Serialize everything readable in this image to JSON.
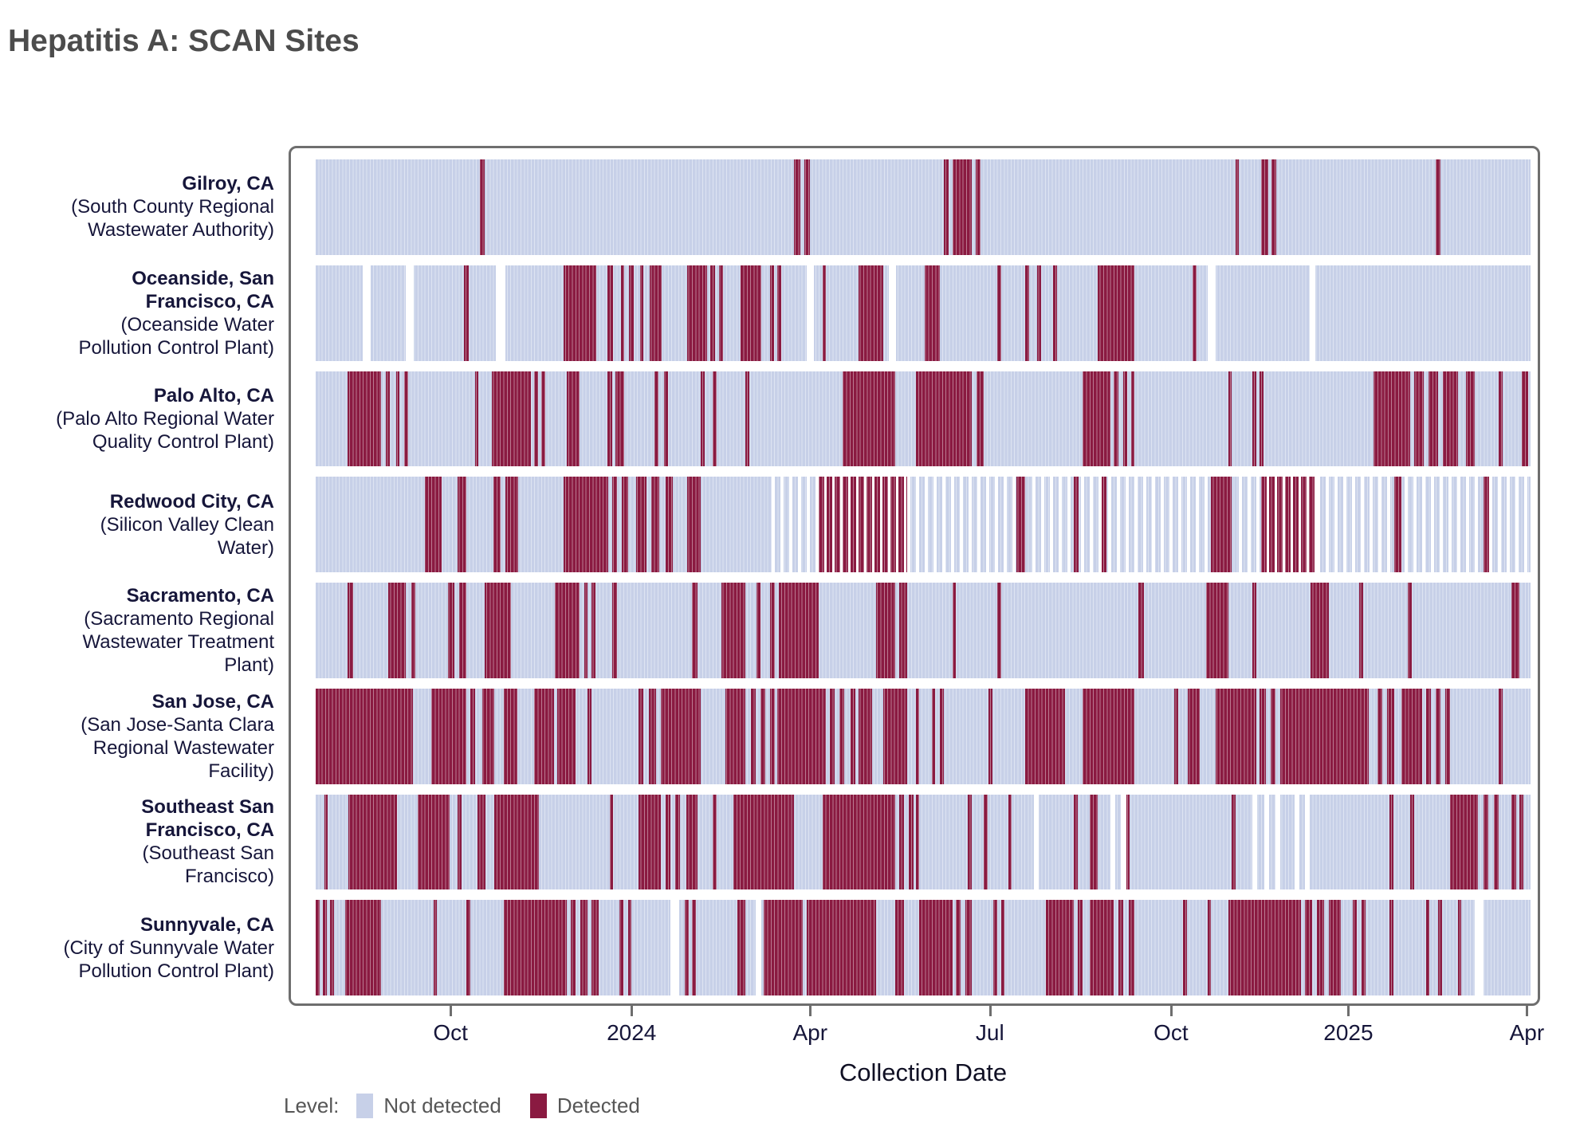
{
  "title": "Hepatitis A: SCAN Sites",
  "chart_data": {
    "type": "heatmap",
    "subtype": "detection-strip-timeline",
    "title": "Hepatitis A: SCAN Sites",
    "xlabel": "Collection Date",
    "x_range": [
      "Jul 2023",
      "Apr 2025"
    ],
    "grid": false,
    "x_ticks": [
      {
        "label": "Oct",
        "pos": 0.111
      },
      {
        "label": "2024",
        "pos": 0.26
      },
      {
        "label": "Apr",
        "pos": 0.407
      },
      {
        "label": "Jul",
        "pos": 0.555
      },
      {
        "label": "Oct",
        "pos": 0.704
      },
      {
        "label": "2025",
        "pos": 0.85
      },
      {
        "label": "Apr",
        "pos": 0.997
      }
    ],
    "legend": {
      "title": "Level:",
      "position": "bottom-left",
      "items": [
        {
          "label": "Not detected",
          "color": "#c7d0e8"
        },
        {
          "label": "Detected",
          "color": "#8a1a41"
        }
      ]
    },
    "colors": {
      "not_detected": "#c7d0e8",
      "detected": "#8a1a41",
      "no_data": "#ffffff",
      "panel_border": "#6e6e6e"
    },
    "sites": [
      {
        "city": "Gilroy, CA",
        "facility": "(South County Regional Wastewater Authority)",
        "detected": [
          [
            0.135,
            0.139
          ],
          [
            0.394,
            0.399
          ],
          [
            0.402,
            0.407
          ],
          [
            0.517,
            0.521
          ],
          [
            0.524,
            0.54
          ],
          [
            0.543,
            0.547
          ],
          [
            0.757,
            0.76
          ],
          [
            0.778,
            0.784
          ],
          [
            0.787,
            0.791
          ],
          [
            0.922,
            0.926
          ]
        ],
        "gaps": [],
        "sparse": [],
        "sparse_detected": []
      },
      {
        "city": "Oceanside, San Francisco, CA",
        "facility": "(Oceanside Water Pollution Control Plant)",
        "detected": [
          [
            0.122,
            0.126
          ],
          [
            0.204,
            0.231
          ],
          [
            0.24,
            0.245
          ],
          [
            0.251,
            0.254
          ],
          [
            0.258,
            0.262
          ],
          [
            0.267,
            0.27
          ],
          [
            0.275,
            0.285
          ],
          [
            0.306,
            0.322
          ],
          [
            0.325,
            0.329
          ],
          [
            0.332,
            0.335
          ],
          [
            0.35,
            0.367
          ],
          [
            0.374,
            0.377
          ],
          [
            0.38,
            0.383
          ],
          [
            0.417,
            0.42
          ],
          [
            0.447,
            0.467
          ],
          [
            0.501,
            0.514
          ],
          [
            0.561,
            0.564
          ],
          [
            0.584,
            0.587
          ],
          [
            0.594,
            0.597
          ],
          [
            0.607,
            0.61
          ],
          [
            0.644,
            0.674
          ],
          [
            0.722,
            0.725
          ]
        ],
        "gaps": [
          [
            0.039,
            0.045
          ],
          [
            0.074,
            0.081
          ],
          [
            0.148,
            0.156
          ],
          [
            0.404,
            0.41
          ],
          [
            0.472,
            0.478
          ],
          [
            0.734,
            0.741
          ],
          [
            0.818,
            0.823
          ]
        ],
        "sparse": [],
        "sparse_detected": []
      },
      {
        "city": "Palo Alto, CA",
        "facility": "(Palo Alto Regional Water Quality Control Plant)",
        "detected": [
          [
            0.026,
            0.054
          ],
          [
            0.058,
            0.061
          ],
          [
            0.066,
            0.069
          ],
          [
            0.073,
            0.076
          ],
          [
            0.131,
            0.134
          ],
          [
            0.145,
            0.177
          ],
          [
            0.18,
            0.183
          ],
          [
            0.186,
            0.189
          ],
          [
            0.207,
            0.217
          ],
          [
            0.24,
            0.244
          ],
          [
            0.247,
            0.254
          ],
          [
            0.279,
            0.282
          ],
          [
            0.287,
            0.29
          ],
          [
            0.317,
            0.32
          ],
          [
            0.327,
            0.33
          ],
          [
            0.354,
            0.357
          ],
          [
            0.434,
            0.477
          ],
          [
            0.494,
            0.54
          ],
          [
            0.544,
            0.55
          ],
          [
            0.631,
            0.654
          ],
          [
            0.657,
            0.661
          ],
          [
            0.665,
            0.668
          ],
          [
            0.671,
            0.674
          ],
          [
            0.751,
            0.754
          ],
          [
            0.771,
            0.774
          ],
          [
            0.777,
            0.78
          ],
          [
            0.871,
            0.901
          ],
          [
            0.904,
            0.912
          ],
          [
            0.916,
            0.924
          ],
          [
            0.928,
            0.94
          ],
          [
            0.947,
            0.954
          ],
          [
            0.974,
            0.977
          ],
          [
            0.993,
            0.998
          ]
        ],
        "gaps": [],
        "sparse": [],
        "sparse_detected": []
      },
      {
        "city": "Redwood City, CA",
        "facility": "(Silicon Valley Clean Water)",
        "detected": [
          [
            0.09,
            0.104
          ],
          [
            0.117,
            0.124
          ],
          [
            0.146,
            0.152
          ],
          [
            0.156,
            0.167
          ],
          [
            0.204,
            0.241
          ],
          [
            0.244,
            0.248
          ],
          [
            0.252,
            0.257
          ],
          [
            0.264,
            0.272
          ],
          [
            0.276,
            0.283
          ],
          [
            0.288,
            0.294
          ],
          [
            0.306,
            0.317
          ],
          [
            0.577,
            0.584
          ],
          [
            0.624,
            0.628
          ],
          [
            0.647,
            0.651
          ],
          [
            0.737,
            0.754
          ],
          [
            0.888,
            0.894
          ],
          [
            0.961,
            0.966
          ]
        ],
        "gaps": [],
        "sparse": [
          [
            0.375,
            0.414
          ],
          [
            0.487,
            0.577
          ],
          [
            0.59,
            0.624
          ],
          [
            0.63,
            0.647
          ],
          [
            0.652,
            0.737
          ],
          [
            0.76,
            0.778
          ],
          [
            0.824,
            0.888
          ],
          [
            0.896,
            0.961
          ],
          [
            0.966,
            1.0
          ]
        ],
        "sparse_detected": [
          [
            0.414,
            0.487
          ],
          [
            0.778,
            0.824
          ]
        ]
      },
      {
        "city": "Sacramento, CA",
        "facility": "(Sacramento Regional Wastewater Treatment Plant)",
        "detected": [
          [
            0.026,
            0.031
          ],
          [
            0.06,
            0.074
          ],
          [
            0.079,
            0.082
          ],
          [
            0.109,
            0.114
          ],
          [
            0.118,
            0.124
          ],
          [
            0.139,
            0.161
          ],
          [
            0.197,
            0.217
          ],
          [
            0.221,
            0.224
          ],
          [
            0.227,
            0.23
          ],
          [
            0.244,
            0.248
          ],
          [
            0.31,
            0.314
          ],
          [
            0.334,
            0.354
          ],
          [
            0.363,
            0.366
          ],
          [
            0.374,
            0.378
          ],
          [
            0.381,
            0.414
          ],
          [
            0.461,
            0.477
          ],
          [
            0.48,
            0.487
          ],
          [
            0.524,
            0.527
          ],
          [
            0.561,
            0.564
          ],
          [
            0.677,
            0.682
          ],
          [
            0.733,
            0.751
          ],
          [
            0.771,
            0.774
          ],
          [
            0.819,
            0.834
          ],
          [
            0.859,
            0.862
          ],
          [
            0.899,
            0.902
          ],
          [
            0.984,
            0.991
          ]
        ],
        "gaps": [],
        "sparse": [],
        "sparse_detected": []
      },
      {
        "city": "San Jose, CA",
        "facility": "(San Jose-Santa Clara Regional Wastewater Facility)",
        "detected": [
          [
            0.0,
            0.08
          ],
          [
            0.095,
            0.124
          ],
          [
            0.127,
            0.131
          ],
          [
            0.137,
            0.147
          ],
          [
            0.155,
            0.166
          ],
          [
            0.18,
            0.196
          ],
          [
            0.199,
            0.214
          ],
          [
            0.224,
            0.227
          ],
          [
            0.266,
            0.27
          ],
          [
            0.274,
            0.28
          ],
          [
            0.284,
            0.317
          ],
          [
            0.337,
            0.354
          ],
          [
            0.358,
            0.362
          ],
          [
            0.366,
            0.37
          ],
          [
            0.374,
            0.378
          ],
          [
            0.38,
            0.42
          ],
          [
            0.423,
            0.427
          ],
          [
            0.431,
            0.435
          ],
          [
            0.44,
            0.444
          ],
          [
            0.447,
            0.458
          ],
          [
            0.467,
            0.487
          ],
          [
            0.494,
            0.497
          ],
          [
            0.507,
            0.51
          ],
          [
            0.514,
            0.517
          ],
          [
            0.554,
            0.557
          ],
          [
            0.584,
            0.617
          ],
          [
            0.631,
            0.674
          ],
          [
            0.707,
            0.71
          ],
          [
            0.718,
            0.728
          ],
          [
            0.741,
            0.774
          ],
          [
            0.777,
            0.782
          ],
          [
            0.786,
            0.79
          ],
          [
            0.794,
            0.867
          ],
          [
            0.874,
            0.878
          ],
          [
            0.882,
            0.888
          ],
          [
            0.894,
            0.911
          ],
          [
            0.914,
            0.918
          ],
          [
            0.922,
            0.926
          ],
          [
            0.93,
            0.934
          ],
          [
            0.974,
            0.977
          ]
        ],
        "gaps": [],
        "sparse": [],
        "sparse_detected": []
      },
      {
        "city": "Southeast San Francisco, CA",
        "facility": "(Southeast San Francisco)",
        "detected": [
          [
            0.007,
            0.01
          ],
          [
            0.027,
            0.067
          ],
          [
            0.084,
            0.11
          ],
          [
            0.117,
            0.12
          ],
          [
            0.133,
            0.14
          ],
          [
            0.147,
            0.184
          ],
          [
            0.242,
            0.245
          ],
          [
            0.266,
            0.284
          ],
          [
            0.288,
            0.292
          ],
          [
            0.296,
            0.3
          ],
          [
            0.305,
            0.314
          ],
          [
            0.327,
            0.33
          ],
          [
            0.344,
            0.394
          ],
          [
            0.417,
            0.477
          ],
          [
            0.48,
            0.484
          ],
          [
            0.488,
            0.492
          ],
          [
            0.494,
            0.497
          ],
          [
            0.537,
            0.54
          ],
          [
            0.55,
            0.553
          ],
          [
            0.57,
            0.573
          ],
          [
            0.624,
            0.627
          ],
          [
            0.637,
            0.644
          ],
          [
            0.667,
            0.67
          ],
          [
            0.754,
            0.757
          ],
          [
            0.884,
            0.887
          ],
          [
            0.901,
            0.904
          ],
          [
            0.934,
            0.957
          ],
          [
            0.961,
            0.965
          ],
          [
            0.97,
            0.974
          ],
          [
            0.984,
            0.988
          ],
          [
            0.991,
            0.994
          ]
        ],
        "gaps": [
          [
            0.591,
            0.595
          ],
          [
            0.654,
            0.658
          ],
          [
            0.663,
            0.667
          ],
          [
            0.771,
            0.775
          ],
          [
            0.781,
            0.785
          ],
          [
            0.79,
            0.794
          ],
          [
            0.806,
            0.81
          ],
          [
            0.814,
            0.818
          ]
        ],
        "sparse": [],
        "sparse_detected": []
      },
      {
        "city": "Sunnyvale, CA",
        "facility": "(City of Sunnyvale Water Pollution Control Plant)",
        "detected": [
          [
            0.0,
            0.003
          ],
          [
            0.006,
            0.009
          ],
          [
            0.012,
            0.015
          ],
          [
            0.024,
            0.054
          ],
          [
            0.097,
            0.1
          ],
          [
            0.124,
            0.127
          ],
          [
            0.155,
            0.207
          ],
          [
            0.21,
            0.214
          ],
          [
            0.218,
            0.224
          ],
          [
            0.227,
            0.233
          ],
          [
            0.25,
            0.253
          ],
          [
            0.257,
            0.26
          ],
          [
            0.304,
            0.307
          ],
          [
            0.31,
            0.313
          ],
          [
            0.347,
            0.354
          ],
          [
            0.369,
            0.401
          ],
          [
            0.404,
            0.461
          ],
          [
            0.477,
            0.484
          ],
          [
            0.497,
            0.524
          ],
          [
            0.527,
            0.531
          ],
          [
            0.535,
            0.54
          ],
          [
            0.558,
            0.561
          ],
          [
            0.564,
            0.567
          ],
          [
            0.601,
            0.624
          ],
          [
            0.627,
            0.631
          ],
          [
            0.637,
            0.657
          ],
          [
            0.661,
            0.665
          ],
          [
            0.669,
            0.674
          ],
          [
            0.714,
            0.717
          ],
          [
            0.734,
            0.737
          ],
          [
            0.751,
            0.811
          ],
          [
            0.814,
            0.82
          ],
          [
            0.824,
            0.83
          ],
          [
            0.834,
            0.844
          ],
          [
            0.854,
            0.857
          ],
          [
            0.861,
            0.864
          ],
          [
            0.884,
            0.887
          ],
          [
            0.914,
            0.917
          ],
          [
            0.924,
            0.927
          ],
          [
            0.94,
            0.943
          ]
        ],
        "gaps": [
          [
            0.292,
            0.299
          ],
          [
            0.362,
            0.367
          ],
          [
            0.954,
            0.961
          ]
        ],
        "sparse": [],
        "sparse_detected": []
      }
    ]
  }
}
